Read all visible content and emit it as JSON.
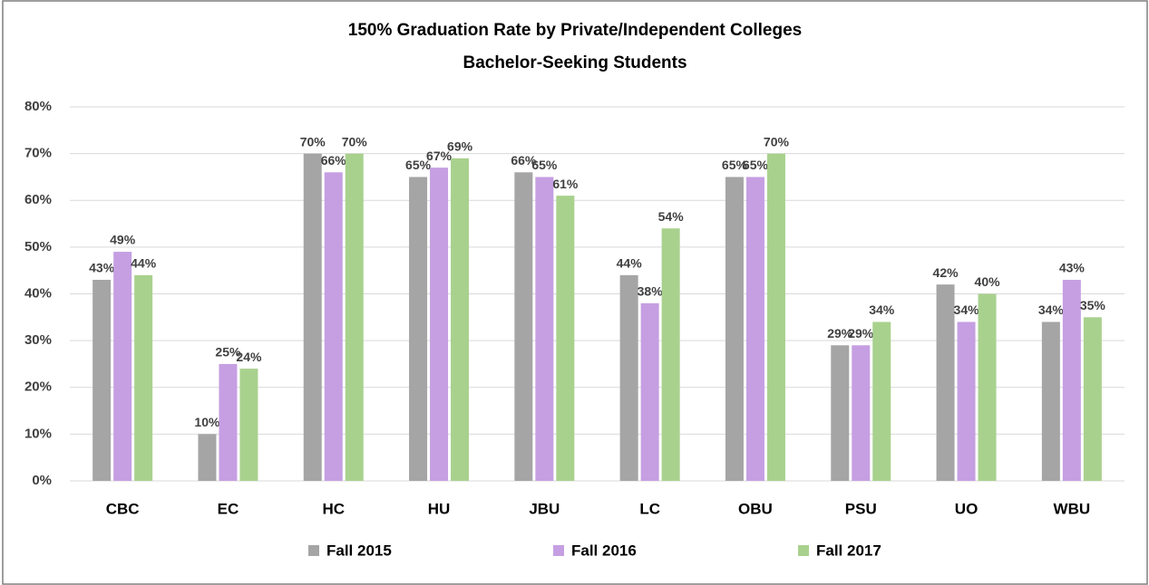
{
  "chart_data": {
    "type": "bar",
    "title": "150% Graduation Rate by Private/Independent Colleges",
    "subtitle": "Bachelor-Seeking Students",
    "categories": [
      "CBC",
      "EC",
      "HC",
      "HU",
      "JBU",
      "LC",
      "OBU",
      "PSU",
      "UO",
      "WBU"
    ],
    "series": [
      {
        "name": "Fall 2015",
        "color": "#a5a5a5",
        "values": [
          43,
          10,
          70,
          65,
          66,
          44,
          65,
          29,
          42,
          34
        ],
        "value_labels": [
          "43%",
          "10%",
          "70%",
          "65%",
          "66%",
          "44%",
          "65%",
          "29%",
          "42%",
          "34%"
        ]
      },
      {
        "name": "Fall 2016",
        "color": "#c59fe2",
        "values": [
          49,
          25,
          66,
          67,
          65,
          38,
          65,
          29,
          34,
          43
        ],
        "value_labels": [
          "49%",
          "25%",
          "66%",
          "67%",
          "65%",
          "38%",
          "65%",
          "29%",
          "34%",
          "43%"
        ]
      },
      {
        "name": "Fall 2017",
        "color": "#a9d18e",
        "values": [
          44,
          24,
          70,
          69,
          61,
          54,
          70,
          34,
          40,
          35
        ],
        "value_labels": [
          "44%",
          "24%",
          "70%",
          "69%",
          "61%",
          "54%",
          "70%",
          "34%",
          "40%",
          "35%"
        ]
      }
    ],
    "ylim": [
      0,
      80
    ],
    "yticks": [
      {
        "value": 0,
        "label": "0%"
      },
      {
        "value": 10,
        "label": "10%"
      },
      {
        "value": 20,
        "label": "20%"
      },
      {
        "value": 30,
        "label": "30%"
      },
      {
        "value": 40,
        "label": "40%"
      },
      {
        "value": 50,
        "label": "50%"
      },
      {
        "value": 60,
        "label": "60%"
      },
      {
        "value": 70,
        "label": "70%"
      },
      {
        "value": 80,
        "label": "80%"
      }
    ],
    "grid": true,
    "legend": "bottom"
  }
}
